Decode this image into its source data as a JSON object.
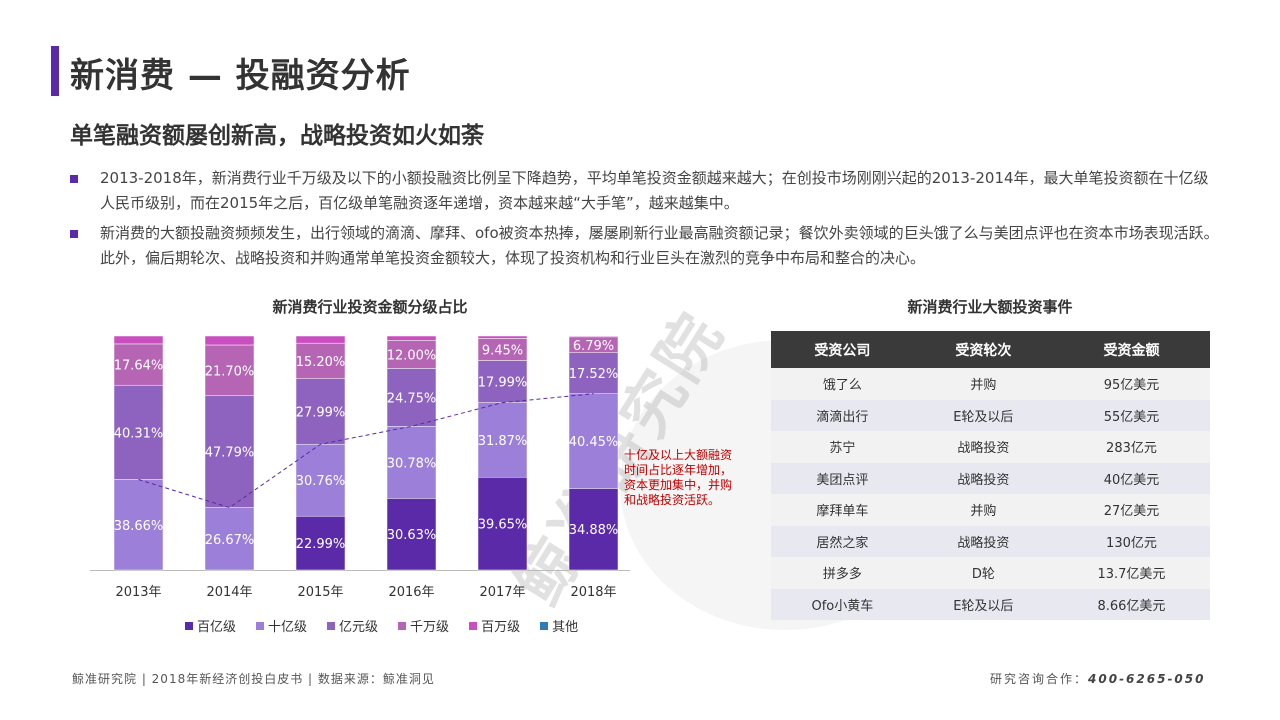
{
  "header": {
    "title": "新消费 — 投融资分析",
    "subtitle": "单笔融资额屡创新高，战略投资如火如荼"
  },
  "bullets": [
    "2013-2018年，新消费行业千万级及以下的小额投融资比例呈下降趋势，平均单笔投资金额越来越大；在创投市场刚刚兴起的2013-2014年，最大单笔投资额在十亿级人民币级别，而在2015年之后，百亿级单笔融资逐年递增，资本越来越“大手笔”，越来越集中。",
    "新消费的大额投融资频频发生，出行领域的滴滴、摩拜、ofo被资本热捧，屡屡刷新行业最高融资额记录；餐饮外卖领域的巨头饿了么与美团点评也在资本市场表现活跃。此外，偏后期轮次、战略投资和并购通常单笔投资金额较大，体现了投资机构和行业巨头在激烈的竞争中布局和整合的决心。"
  ],
  "watermark": "鲸准研究院",
  "chart_data": {
    "type": "bar",
    "stacked": true,
    "percent": true,
    "title": "新消费行业投资金额分级占比",
    "categories": [
      "2013年",
      "2014年",
      "2015年",
      "2016年",
      "2017年",
      "2018年"
    ],
    "series": [
      {
        "name": "百亿级",
        "color": "#5b2aa8",
        "values": [
          0,
          0,
          22.99,
          30.63,
          39.65,
          34.88
        ]
      },
      {
        "name": "十亿级",
        "color": "#9b7fd9",
        "values": [
          38.66,
          26.67,
          30.76,
          30.78,
          31.87,
          40.45
        ]
      },
      {
        "name": "亿元级",
        "color": "#8e63c0",
        "values": [
          40.31,
          47.79,
          27.99,
          24.75,
          17.99,
          17.52
        ]
      },
      {
        "name": "千万级",
        "color": "#b565b4",
        "values": [
          17.64,
          21.7,
          15.2,
          12.0,
          9.45,
          6.79
        ]
      },
      {
        "name": "百万级",
        "color": "#c94fc0",
        "values": [
          3.39,
          3.84,
          3.06,
          1.84,
          1.04,
          0.36
        ]
      },
      {
        "name": "其他",
        "color": "#2e7db5",
        "values": [
          0,
          0,
          0,
          0,
          0,
          0
        ]
      }
    ],
    "labels": [
      [
        "",
        "38.66%",
        "40.31%",
        "17.64%",
        ""
      ],
      [
        "",
        "26.67%",
        "47.79%",
        "21.70%",
        ""
      ],
      [
        "22.99%",
        "30.76%",
        "27.99%",
        "15.20%",
        ""
      ],
      [
        "30.63%",
        "30.78%",
        "24.75%",
        "12.00%",
        ""
      ],
      [
        "39.65%",
        "31.87%",
        "17.99%",
        "9.45%",
        ""
      ],
      [
        "34.88%",
        "40.45%",
        "17.52%",
        "6.79%",
        ""
      ]
    ],
    "trend_line": "十亿级及以上占比",
    "ylim": [
      0,
      100
    ],
    "annotation": "十亿及以上大额融资时间占比逐年增加，资本更加集中，并购和战略投资活跃。",
    "legend_position": "bottom"
  },
  "table": {
    "title": "新消费行业大额投资事件",
    "headers": [
      "受资公司",
      "受资轮次",
      "受资金额"
    ],
    "rows": [
      [
        "饿了么",
        "并购",
        "95亿美元"
      ],
      [
        "滴滴出行",
        "E轮及以后",
        "55亿美元"
      ],
      [
        "苏宁",
        "战略投资",
        "283亿元"
      ],
      [
        "美团点评",
        "战略投资",
        "40亿美元"
      ],
      [
        "摩拜单车",
        "并购",
        "27亿美元"
      ],
      [
        "居然之家",
        "战略投资",
        "130亿元"
      ],
      [
        "拼多多",
        "D轮",
        "13.7亿美元"
      ],
      [
        "Ofo小黄车",
        "E轮及以后",
        "8.66亿美元"
      ]
    ]
  },
  "footer": {
    "left": "鲸准研究院 | 2018年新经济创投白皮书 | 数据来源：鲸准洞见",
    "right_label": "研究咨询合作：",
    "phone": "400-6265-050"
  }
}
